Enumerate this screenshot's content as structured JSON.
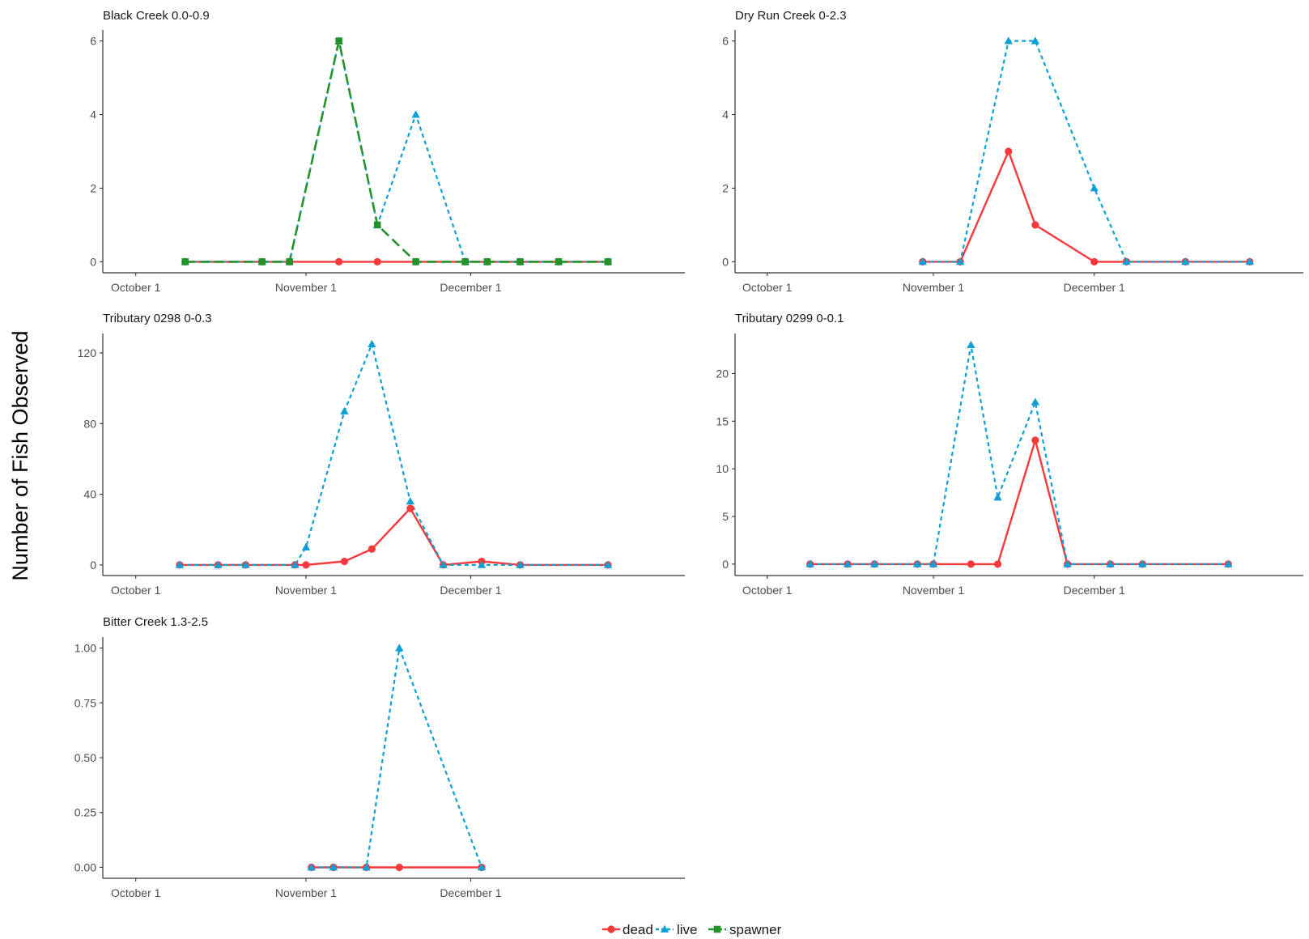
{
  "colors": {
    "dead": "#f8393b",
    "live": "#0ca0d6",
    "spawner": "#22932a"
  },
  "ylabel": "Number of Fish Observed",
  "legend": {
    "placement": "bottom",
    "entries": [
      "dead",
      "live",
      "spawner"
    ]
  },
  "chart_data": [
    {
      "type": "line",
      "title": "Black Creek 0.0-0.9",
      "x_ticks": [
        "October 1",
        "November 1",
        "December 1"
      ],
      "y_ticks": [
        "0",
        "2",
        "4",
        "6"
      ],
      "xlim": [
        "2019-09-25",
        "2020-01-09"
      ],
      "ylim": [
        -0.3,
        6.3
      ],
      "series": [
        {
          "name": "dead",
          "x": [
            "2019-10-10",
            "2019-10-24",
            "2019-10-29",
            "2019-11-07",
            "2019-11-14",
            "2019-11-21",
            "2019-11-30",
            "2019-12-04",
            "2019-12-10",
            "2019-12-17",
            "2019-12-26"
          ],
          "values": [
            0,
            0,
            0,
            0,
            0,
            0,
            0,
            0,
            0,
            0,
            0
          ]
        },
        {
          "name": "live",
          "x": [
            "2019-10-10",
            "2019-10-24",
            "2019-10-29",
            "2019-11-07",
            "2019-11-14",
            "2019-11-21",
            "2019-11-30",
            "2019-12-04",
            "2019-12-10",
            "2019-12-17",
            "2019-12-26"
          ],
          "values": [
            0,
            0,
            0,
            6,
            1,
            4,
            0,
            0,
            0,
            0,
            0
          ]
        },
        {
          "name": "spawner",
          "x": [
            "2019-10-10",
            "2019-10-24",
            "2019-10-29",
            "2019-11-07",
            "2019-11-14",
            "2019-11-21",
            "2019-11-30",
            "2019-12-04",
            "2019-12-10",
            "2019-12-17",
            "2019-12-26"
          ],
          "values": [
            0,
            0,
            0,
            6,
            1,
            0,
            0,
            0,
            0,
            0,
            0
          ]
        }
      ]
    },
    {
      "type": "line",
      "title": "Dry Run Creek 0-2.3",
      "x_ticks": [
        "October 1",
        "November 1",
        "December 1"
      ],
      "y_ticks": [
        "0",
        "2",
        "4",
        "6"
      ],
      "xlim": [
        "2019-09-25",
        "2020-01-09"
      ],
      "ylim": [
        -0.3,
        6.3
      ],
      "series": [
        {
          "name": "dead",
          "x": [
            "2019-10-30",
            "2019-11-06",
            "2019-11-15",
            "2019-11-20",
            "2019-12-01",
            "2019-12-07",
            "2019-12-18",
            "2019-12-30"
          ],
          "values": [
            0,
            0,
            3,
            1,
            0,
            0,
            0,
            0
          ]
        },
        {
          "name": "live",
          "x": [
            "2019-10-30",
            "2019-11-06",
            "2019-11-15",
            "2019-11-20",
            "2019-12-01",
            "2019-12-07",
            "2019-12-18",
            "2019-12-30"
          ],
          "values": [
            0,
            0,
            6,
            6,
            2,
            0,
            0,
            0
          ]
        }
      ]
    },
    {
      "type": "line",
      "title": "Tributary 0298 0-0.3",
      "x_ticks": [
        "October 1",
        "November 1",
        "December 1"
      ],
      "y_ticks": [
        "0",
        "40",
        "80",
        "120"
      ],
      "xlim": [
        "2019-09-25",
        "2020-01-09"
      ],
      "ylim": [
        -6,
        131
      ],
      "series": [
        {
          "name": "dead",
          "x": [
            "2019-10-09",
            "2019-10-16",
            "2019-10-21",
            "2019-10-30",
            "2019-11-01",
            "2019-11-08",
            "2019-11-13",
            "2019-11-20",
            "2019-11-26",
            "2019-12-03",
            "2019-12-10",
            "2019-12-26"
          ],
          "values": [
            0,
            0,
            0,
            0,
            0,
            2,
            9,
            32,
            0,
            2,
            0,
            0
          ]
        },
        {
          "name": "live",
          "x": [
            "2019-10-09",
            "2019-10-16",
            "2019-10-21",
            "2019-10-30",
            "2019-11-01",
            "2019-11-08",
            "2019-11-13",
            "2019-11-20",
            "2019-11-26",
            "2019-12-03",
            "2019-12-10",
            "2019-12-26"
          ],
          "values": [
            0,
            0,
            0,
            0,
            10,
            87,
            125,
            36,
            0,
            0,
            0,
            0
          ]
        }
      ]
    },
    {
      "type": "line",
      "title": "Tributary 0299 0-0.1",
      "x_ticks": [
        "October 1",
        "November 1",
        "December 1"
      ],
      "y_ticks": [
        "0",
        "5",
        "10",
        "15",
        "20"
      ],
      "xlim": [
        "2019-09-25",
        "2020-01-09"
      ],
      "ylim": [
        -1.2,
        24.2
      ],
      "series": [
        {
          "name": "dead",
          "x": [
            "2019-10-09",
            "2019-10-16",
            "2019-10-21",
            "2019-10-29",
            "2019-11-01",
            "2019-11-08",
            "2019-11-13",
            "2019-11-20",
            "2019-11-26",
            "2019-12-04",
            "2019-12-10",
            "2019-12-26"
          ],
          "values": [
            0,
            0,
            0,
            0,
            0,
            0,
            0,
            13,
            0,
            0,
            0,
            0
          ]
        },
        {
          "name": "live",
          "x": [
            "2019-10-09",
            "2019-10-16",
            "2019-10-21",
            "2019-10-29",
            "2019-11-01",
            "2019-11-08",
            "2019-11-13",
            "2019-11-20",
            "2019-11-26",
            "2019-12-04",
            "2019-12-10",
            "2019-12-26"
          ],
          "values": [
            0,
            0,
            0,
            0,
            0,
            23,
            7,
            17,
            0,
            0,
            0,
            0
          ]
        }
      ]
    },
    {
      "type": "line",
      "title": "Bitter Creek 1.3-2.5",
      "x_ticks": [
        "October 1",
        "November 1",
        "December 1"
      ],
      "y_ticks": [
        "0.00",
        "0.25",
        "0.50",
        "0.75",
        "1.00"
      ],
      "xlim": [
        "2019-09-25",
        "2020-01-09"
      ],
      "ylim": [
        -0.05,
        1.05
      ],
      "series": [
        {
          "name": "dead",
          "x": [
            "2019-11-02",
            "2019-11-06",
            "2019-11-12",
            "2019-11-18",
            "2019-12-03"
          ],
          "values": [
            0,
            0,
            0,
            0,
            0
          ]
        },
        {
          "name": "live",
          "x": [
            "2019-11-02",
            "2019-11-06",
            "2019-11-12",
            "2019-11-18",
            "2019-12-03"
          ],
          "values": [
            0,
            0,
            0,
            1,
            0
          ]
        }
      ]
    }
  ]
}
